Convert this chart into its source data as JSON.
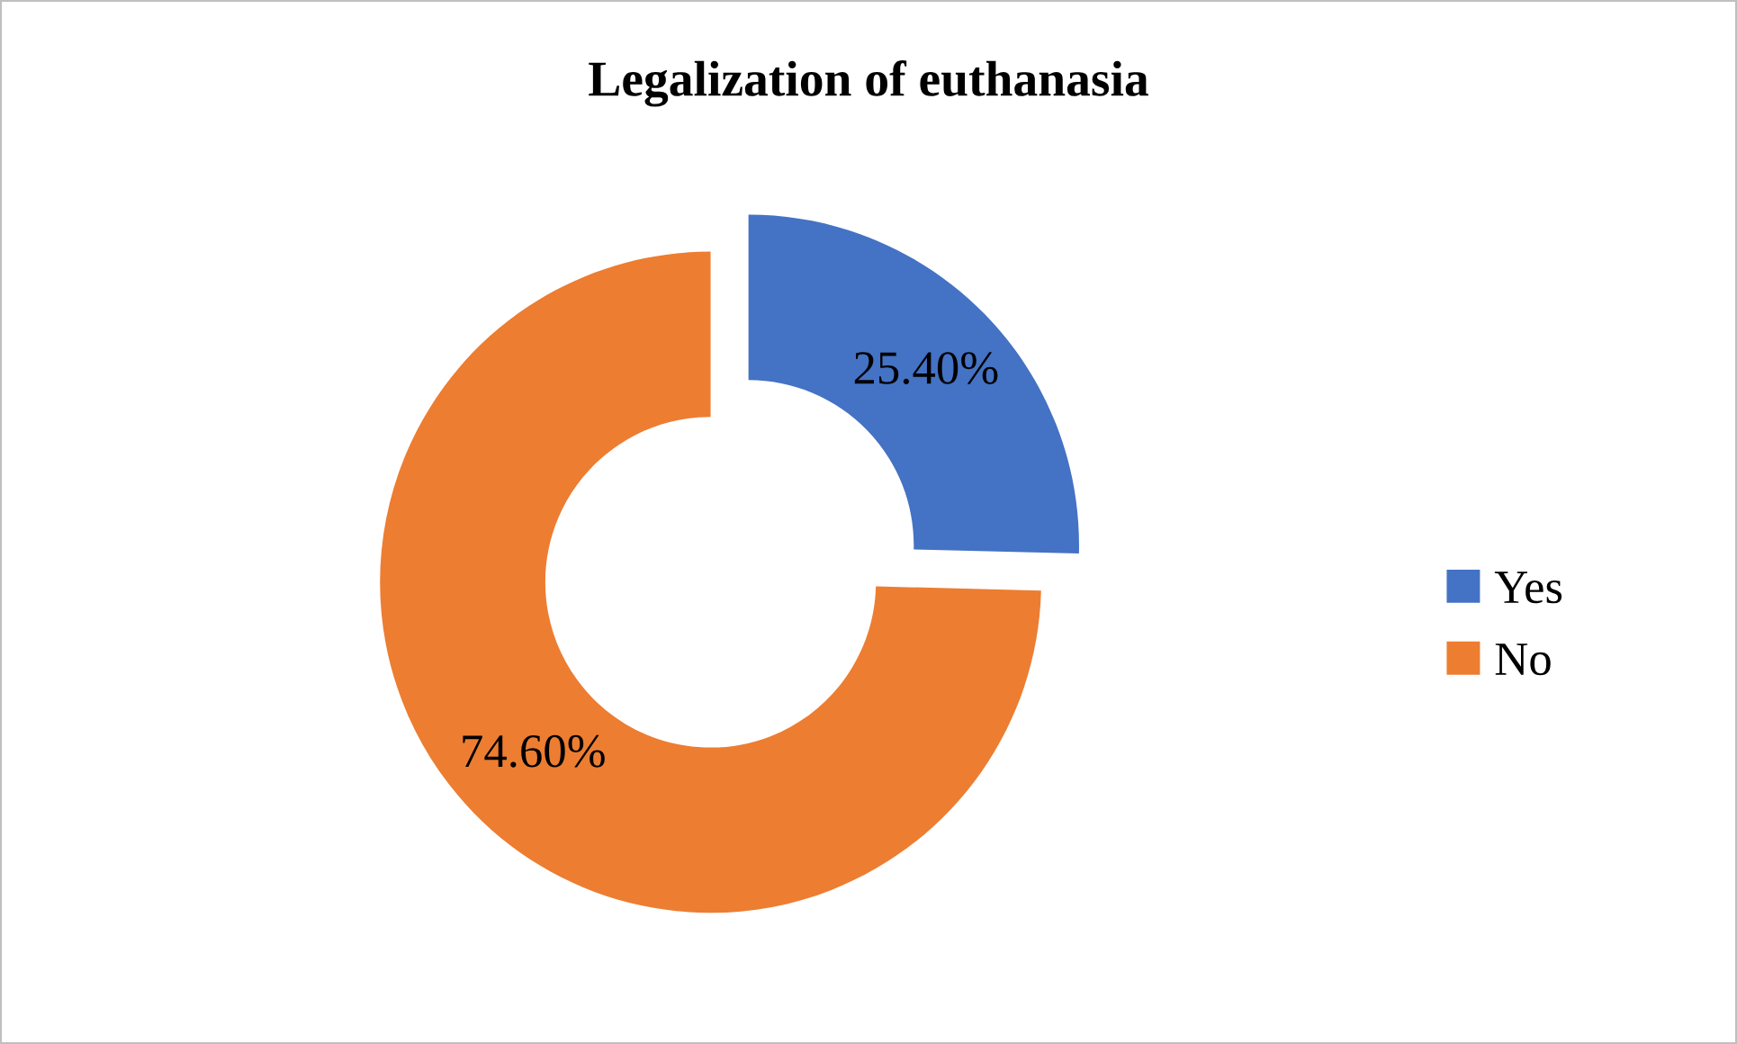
{
  "chart_data": {
    "type": "donut",
    "title": "Legalization of euthanasia",
    "categories": [
      "Yes",
      "No"
    ],
    "values": [
      25.4,
      74.6
    ],
    "colors": [
      "#4472c4",
      "#ed7d31"
    ],
    "value_labels": [
      "25.40%",
      "74.60%"
    ],
    "legend": "right"
  }
}
